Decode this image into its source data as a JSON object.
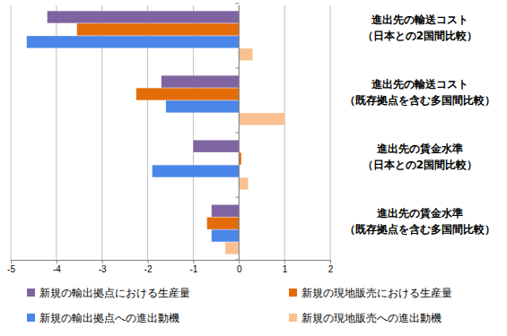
{
  "chart_data": {
    "type": "bar",
    "orientation": "horizontal",
    "categories": [
      "進出先の輸送コスト\n（日本との2国間比較）",
      "進出先の輸送コスト\n（既存拠点を含む多国間比較）",
      "進出先の賃金水準\n（日本との2国間比較）",
      "進出先の賃金水準\n（既存拠点を含む多国間比較）"
    ],
    "series": [
      {
        "name": "新規の輸出拠点における生産量",
        "color": "#8064a2",
        "values": [
          -4.2,
          -1.7,
          -1.0,
          -0.6
        ]
      },
      {
        "name": "新規の現地販売における生産量",
        "color": "#e36c09",
        "values": [
          -3.55,
          -2.25,
          0.05,
          -0.7
        ]
      },
      {
        "name": "新規の輸出拠点への進出動機",
        "color": "#4a86e8",
        "values": [
          -4.65,
          -1.6,
          -1.9,
          -0.6
        ]
      },
      {
        "name": "新規の現地販売への進出動機",
        "color": "#fac090",
        "values": [
          0.3,
          1.0,
          0.2,
          -0.3
        ]
      }
    ],
    "xlim": [
      -5,
      2
    ],
    "xticks": [
      -5,
      -4,
      -3,
      -2,
      -1,
      0,
      1,
      2
    ],
    "grid": true,
    "legend": "bottom"
  }
}
